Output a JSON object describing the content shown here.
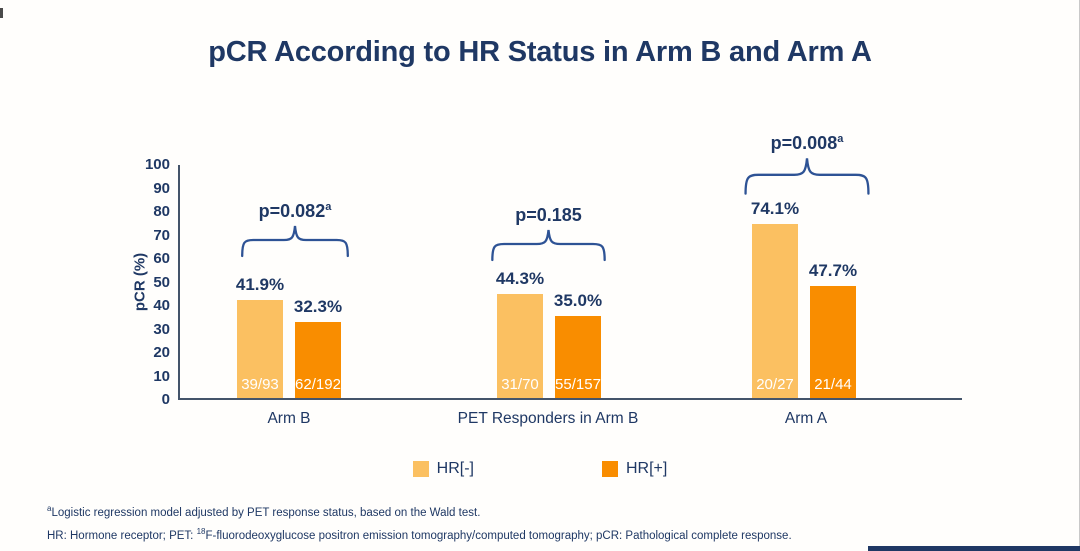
{
  "chart_data": {
    "type": "bar",
    "title": "pCR According to HR Status in Arm B and Arm A",
    "ylabel": "pCR (%)",
    "ylim": [
      0,
      100
    ],
    "yticks": [
      100,
      90,
      80,
      70,
      60,
      50,
      40,
      30,
      20,
      10,
      0
    ],
    "grid": false,
    "legend_position": "bottom",
    "categories": [
      "Arm B",
      "PET Responders in Arm B",
      "Arm A"
    ],
    "series": [
      {
        "name": "HR[-]",
        "color": "#fbc061",
        "values": [
          41.9,
          44.3,
          74.1
        ],
        "counts": [
          "39/93",
          "31/70",
          "20/27"
        ]
      },
      {
        "name": "HR[+]",
        "color": "#f98d00",
        "values": [
          32.3,
          35.0,
          47.7
        ],
        "counts": [
          "62/192",
          "55/157",
          "21/44"
        ]
      }
    ],
    "groups": [
      {
        "label": "Arm B",
        "p": "p=0.082",
        "p_sup": "a",
        "bars": [
          {
            "pct": "41.9%",
            "frac": "39/93"
          },
          {
            "pct": "32.3%",
            "frac": "62/192"
          }
        ]
      },
      {
        "label": "PET Responders in Arm B",
        "p": "p=0.185",
        "p_sup": "",
        "bars": [
          {
            "pct": "44.3%",
            "frac": "31/70"
          },
          {
            "pct": "35.0%",
            "frac": "55/157"
          }
        ]
      },
      {
        "label": "Arm A",
        "p": "p=0.008",
        "p_sup": "a",
        "bars": [
          {
            "pct": "74.1%",
            "frac": "20/27"
          },
          {
            "pct": "47.7%",
            "frac": "21/44"
          }
        ]
      }
    ]
  },
  "legend": {
    "items": [
      "HR[-]",
      "HR[+]"
    ]
  },
  "footnotes": {
    "line1_sup": "a",
    "line1": "Logistic regression model adjusted by PET response status, based on the Wald test.",
    "line2_prefix": "HR: Hormone receptor; PET: ",
    "line2_sup": "18",
    "line2_rest": "F-fluorodeoxyglucose positron emission tomography/computed tomography; pCR: Pathological complete response."
  },
  "colors": {
    "navy_text": "#1f3864",
    "axis": "#44546a",
    "brace": "#2e5395",
    "hr_negative": "#fbc061",
    "hr_positive": "#f98d00"
  }
}
